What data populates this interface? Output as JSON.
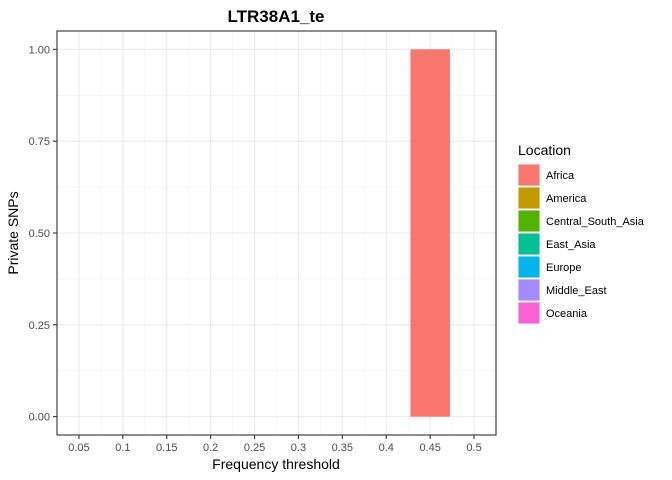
{
  "chart_data": {
    "type": "bar",
    "title": "LTR38A1_te",
    "xlabel": "Frequency threshold",
    "ylabel": "Private SNPs",
    "x_ticks": [
      "0.05",
      "0.1",
      "0.15",
      "0.2",
      "0.25",
      "0.3",
      "0.35",
      "0.4",
      "0.45",
      "0.5"
    ],
    "y_ticks": [
      "0.00",
      "0.25",
      "0.50",
      "0.75",
      "1.00"
    ],
    "xlim": [
      0.025,
      0.525
    ],
    "ylim": [
      -0.05,
      1.05
    ],
    "grid": true,
    "legend_position": "right",
    "legend": {
      "title": "Location",
      "items": [
        {
          "label": "Africa",
          "color": "#F8766D"
        },
        {
          "label": "America",
          "color": "#C49A00"
        },
        {
          "label": "Central_South_Asia",
          "color": "#53B400"
        },
        {
          "label": "East_Asia",
          "color": "#00C094"
        },
        {
          "label": "Europe",
          "color": "#00B6EB"
        },
        {
          "label": "Middle_East",
          "color": "#A58AFF"
        },
        {
          "label": "Oceania",
          "color": "#FB61D7"
        }
      ]
    },
    "bars": [
      {
        "series": "Africa",
        "x": 0.45,
        "y": 1.0,
        "color": "#F8766D"
      }
    ]
  }
}
